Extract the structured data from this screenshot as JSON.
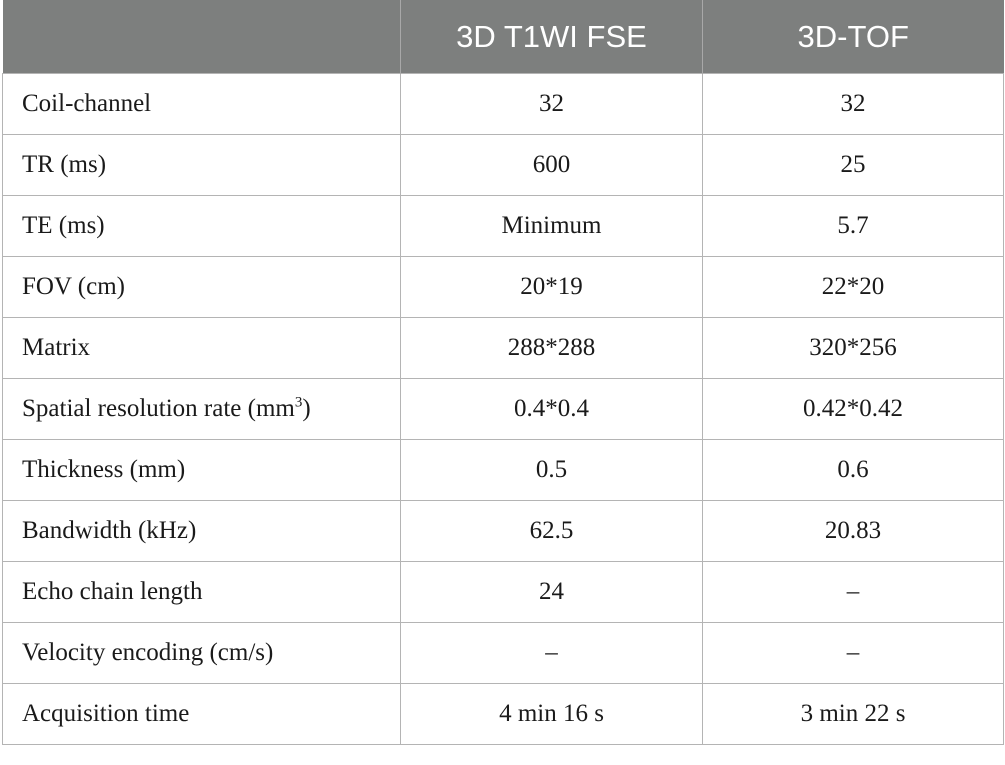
{
  "table": {
    "headers": [
      "",
      "3D T1WI FSE",
      "3D-TOF"
    ],
    "rows": [
      {
        "label": "Coil-channel",
        "t1wi_fse": "32",
        "tof": "32"
      },
      {
        "label": "TR (ms)",
        "t1wi_fse": "600",
        "tof": "25"
      },
      {
        "label": "TE (ms)",
        "t1wi_fse": "Minimum",
        "tof": "5.7"
      },
      {
        "label": "FOV (cm)",
        "t1wi_fse": "20*19",
        "tof": "22*20"
      },
      {
        "label": "Matrix",
        "t1wi_fse": "288*288",
        "tof": "320*256"
      },
      {
        "label": "Spatial resolution rate (mm",
        "label_sup": "3",
        "label_suffix": ")",
        "t1wi_fse": "0.4*0.4",
        "tof": "0.42*0.42"
      },
      {
        "label": "Thickness (mm)",
        "t1wi_fse": "0.5",
        "tof": "0.6"
      },
      {
        "label": "Bandwidth (kHz)",
        "t1wi_fse": "62.5",
        "tof": "20.83"
      },
      {
        "label": "Echo chain length",
        "t1wi_fse": "24",
        "tof": "–"
      },
      {
        "label": "Velocity encoding (cm/s)",
        "t1wi_fse": "–",
        "tof": "–"
      },
      {
        "label": "Acquisition time",
        "t1wi_fse": "4 min 16 s",
        "tof": "3 min 22 s"
      }
    ]
  },
  "colors": {
    "header_bg": "#7d7f7e",
    "header_text": "#ffffff",
    "border": "#b4b4b4"
  }
}
